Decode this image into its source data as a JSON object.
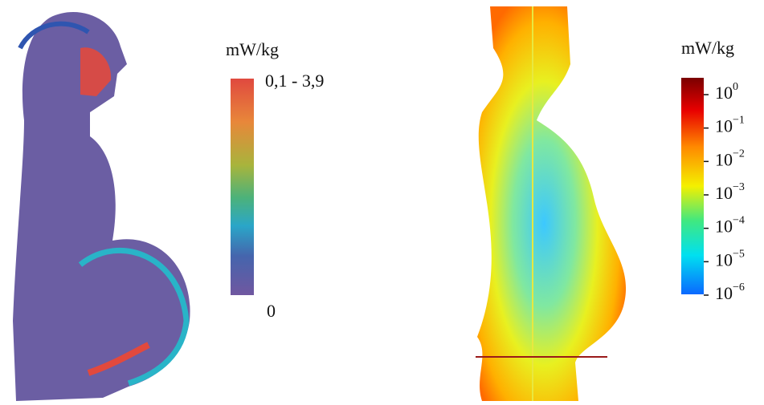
{
  "left_panel": {
    "unit": "mW/kg",
    "colorbar": {
      "max_label": "0,1 - 3,9",
      "min_label": "0"
    }
  },
  "right_panel": {
    "unit": "mW/kg",
    "colorbar": {
      "ticks": [
        {
          "base": "10",
          "exponent": "0"
        },
        {
          "base": "10",
          "exponent": "−1"
        },
        {
          "base": "10",
          "exponent": "−2"
        },
        {
          "base": "10",
          "exponent": "−3"
        },
        {
          "base": "10",
          "exponent": "−4"
        },
        {
          "base": "10",
          "exponent": "−5"
        },
        {
          "base": "10",
          "exponent": "−6"
        }
      ]
    }
  }
}
